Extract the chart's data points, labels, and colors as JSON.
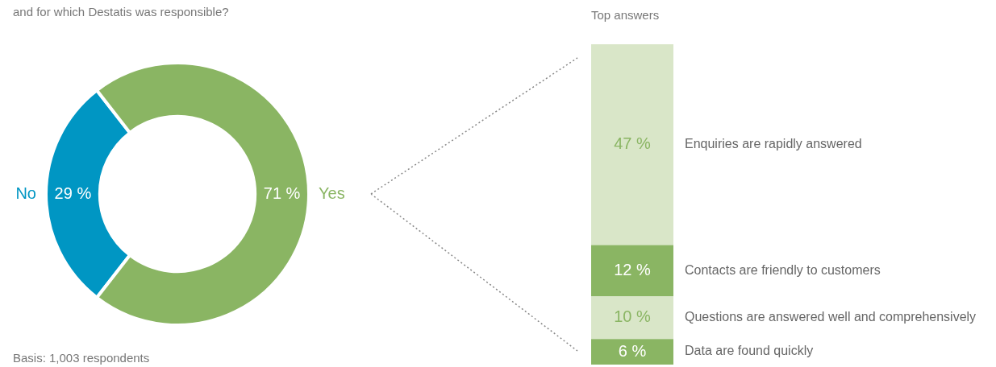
{
  "chart_data": [
    {
      "type": "donut",
      "title": "and for which Destatis was responsible?",
      "categories": [
        "No",
        "Yes"
      ],
      "values": [
        29,
        71
      ],
      "colors": [
        "#0096c3",
        "#8ab563"
      ],
      "value_labels": [
        "29 %",
        "71 %"
      ],
      "annotations": [
        "Basis: 1,003 respondents"
      ],
      "legend": false
    },
    {
      "type": "bar",
      "title": "Top answers",
      "stacked": true,
      "categories": [
        null
      ],
      "legend": false,
      "series": [
        {
          "name": "Data are found quickly",
          "color": "#8ab563",
          "values": [
            6
          ],
          "value_labels": [
            "6 %"
          ]
        },
        {
          "name": "Questions are answered well and comprehensively",
          "color": "#d9e6c8",
          "values": [
            10
          ],
          "value_labels": [
            "10 %"
          ]
        },
        {
          "name": "Contacts are friendly to customers",
          "color": "#8ab563",
          "values": [
            12
          ],
          "value_labels": [
            "12 %"
          ]
        },
        {
          "name": "Enquiries are rapidly answered",
          "color": "#d9e6c8",
          "values": [
            47
          ],
          "value_labels": [
            "47 %"
          ]
        }
      ]
    }
  ]
}
